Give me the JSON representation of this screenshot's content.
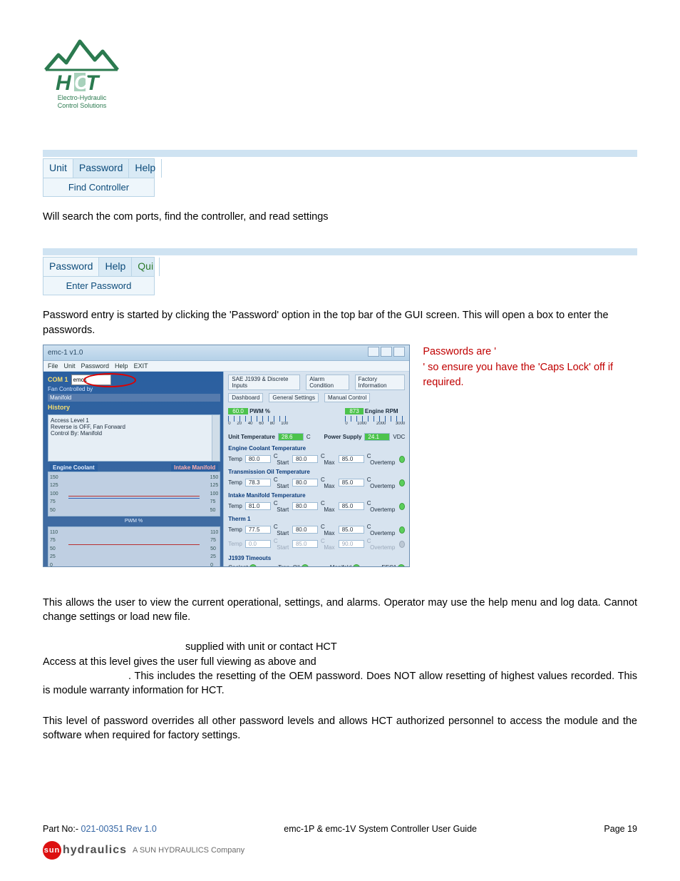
{
  "logo": {
    "top": "Electro-Hydraulic",
    "bottom": "Control Solutions",
    "color_mtn": "#2b7a4f",
    "color_text": "#2b7a4f"
  },
  "menu_unit": {
    "items": [
      "Unit",
      "Password",
      "Help"
    ],
    "selected": 0,
    "drop": "Find Controller"
  },
  "para_find": "Will search the com ports, find the controller, and read settings",
  "menu_pw": {
    "items": [
      "Password",
      "Help",
      "Qui"
    ],
    "selected": 0,
    "drop": "Enter Password"
  },
  "para_pw_1": "Password entry is started by clicking the 'Password' option in the top bar of the GUI screen. This will open a box to enter the passwords.",
  "screenshot": {
    "title": "emc-1 v1.0",
    "appmenu": [
      "File",
      "Unit",
      "Password",
      "Help",
      "EXIT"
    ],
    "left": {
      "com": "COM 1",
      "search_val": "emc1",
      "fan_ctrl": "Fan Controlled by",
      "manifold": "Manifold",
      "history": "History",
      "hist_lines": [
        "Access Level 1",
        "Reverse is OFF, Fan Forward",
        "Control By: Manifold"
      ],
      "chart1": {
        "title": "Engine Coolant",
        "log": "Log Data",
        "ticks": [
          "150",
          "125",
          "100",
          "75",
          "50"
        ],
        "val_pos": 0.35
      },
      "chart2": {
        "title": "Intake Manifold",
        "pwm": "PWM %",
        "ticks": [
          "150",
          "125",
          "100",
          "75",
          "50"
        ],
        "ticks2": [
          "110",
          "75",
          "50",
          "25",
          "0"
        ],
        "val_pos": 0.78
      }
    },
    "right": {
      "tabs_top": [
        "SAE J1939 & Discrete Inputs",
        "Alarm Condition",
        "Factory Information"
      ],
      "tabs_bot": [
        "Dashboard",
        "General Settings",
        "Manual Control"
      ],
      "pwm_gauge": {
        "val": "60.0",
        "label": "PWM %",
        "ticks": [
          "0",
          "20",
          "40",
          "60",
          "80",
          "100"
        ]
      },
      "rpm_gauge": {
        "val": "873",
        "label": "Engine RPM",
        "ticks": [
          "0",
          "1000",
          "2000",
          "3000"
        ]
      },
      "unit_temp": {
        "label": "Unit Temperature",
        "val": "28.6",
        "unit": "C"
      },
      "power": {
        "label": "Power Supply",
        "val": "24.1",
        "unit": "VDC"
      },
      "sections": [
        {
          "head": "Engine Coolant Temperature",
          "temp": "80.0",
          "start": "80.0",
          "max": "85.0",
          "led": "green"
        },
        {
          "head": "Transmission Oil Temperature",
          "temp": "78.3",
          "start": "80.0",
          "max": "85.0",
          "led": "green"
        },
        {
          "head": "Intake Manifold Temperature",
          "temp": "81.0",
          "start": "80.0",
          "max": "85.0",
          "led": "green"
        },
        {
          "head": "Therm 1",
          "temp": "77.5",
          "start": "80.0",
          "max": "85.0",
          "led": "green"
        },
        {
          "head": "",
          "temp": "0.0",
          "start": "85.0",
          "max": "90.0",
          "led": "gray",
          "dim": true
        }
      ],
      "j1939_head": "J1939 Timeouts",
      "j1939": [
        {
          "l": "Coolant"
        },
        {
          "l": "Tran. Oil"
        },
        {
          "l": "Manifold"
        },
        {
          "l": "EEC1"
        }
      ]
    }
  },
  "side_note": {
    "l1": "Passwords are '",
    "l2": "' so ensure you have the 'Caps Lock' off if required."
  },
  "para_level": "This allows the user to view the current operational, settings, and alarms. Operator may use the help menu and log data. Cannot change settings or load new file.",
  "para_sup": "supplied with unit or contact HCT",
  "para_access_1": "Access at this level gives the user full viewing as above and",
  "para_access_2": ". This includes the resetting of the OEM password. Does NOT allow resetting of highest values recorded. This is module warranty information for HCT.",
  "para_hct": "This level of password overrides all other password levels and allows HCT authorized personnel to access the module and the software when required for factory settings.",
  "footer": {
    "part": "Part No:-",
    "part_no": "021-00351 Rev 1.0",
    "mid": "emc-1P & emc-1V       System Controller User Guide",
    "page": "Page 19",
    "sun_brand": "hydraulics",
    "sun_sub": "A SUN HYDRAULICS Company",
    "sun_circle": "sun"
  }
}
